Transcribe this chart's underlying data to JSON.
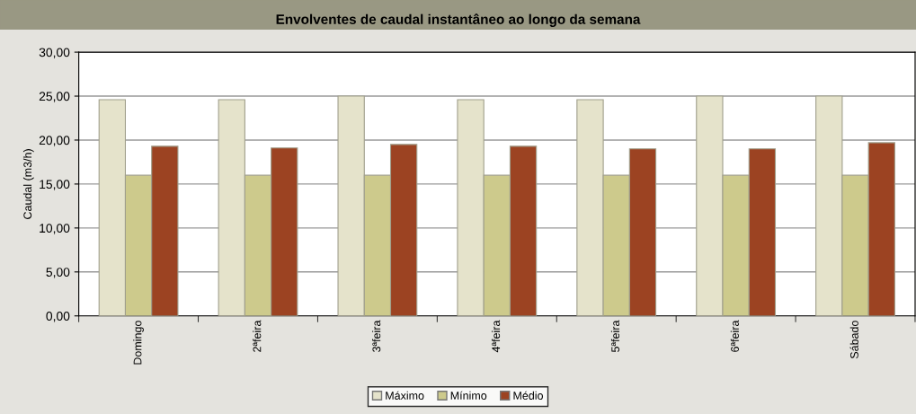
{
  "chart_data": {
    "type": "bar",
    "title": "Envolventes de caudal instantâneo ao longo da semana",
    "ylabel": "Caudal (m3/h)",
    "categories": [
      "Domingo",
      "2ªfeira",
      "3ªfeira",
      "4ªfeira",
      "5ªfeira",
      "6ªfeira",
      "Sábado"
    ],
    "series": [
      {
        "name": "Máximo",
        "color": "#e5e3cb",
        "values": [
          24.6,
          24.6,
          25.0,
          24.6,
          24.6,
          25.0,
          25.0
        ]
      },
      {
        "name": "Mínimo",
        "color": "#cdca8c",
        "values": [
          16.0,
          16.0,
          16.0,
          16.0,
          16.0,
          16.0,
          16.0
        ]
      },
      {
        "name": "Médio",
        "color": "#9c4322",
        "values": [
          19.3,
          19.1,
          19.5,
          19.3,
          19.0,
          19.0,
          19.7
        ]
      }
    ],
    "ylim": [
      0,
      30
    ],
    "yticks": [
      {
        "value": 0,
        "label": "0,00"
      },
      {
        "value": 5,
        "label": "5,00"
      },
      {
        "value": 10,
        "label": "10,00"
      },
      {
        "value": 15,
        "label": "15,00"
      },
      {
        "value": 20,
        "label": "20,00"
      },
      {
        "value": 25,
        "label": "25,00"
      },
      {
        "value": 30,
        "label": "30,00"
      }
    ],
    "grid": "y",
    "legend": "bottom"
  }
}
